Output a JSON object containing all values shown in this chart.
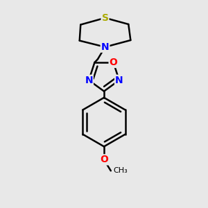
{
  "background_color": "#e8e8e8",
  "bond_color": "#000000",
  "S_color": "#aaaa00",
  "N_color": "#0000ff",
  "O_color": "#ff0000",
  "line_width": 1.8,
  "figsize": [
    3.0,
    3.0
  ],
  "dpi": 100,
  "xlim": [
    0.15,
    0.85
  ],
  "ylim": [
    0.02,
    0.98
  ]
}
